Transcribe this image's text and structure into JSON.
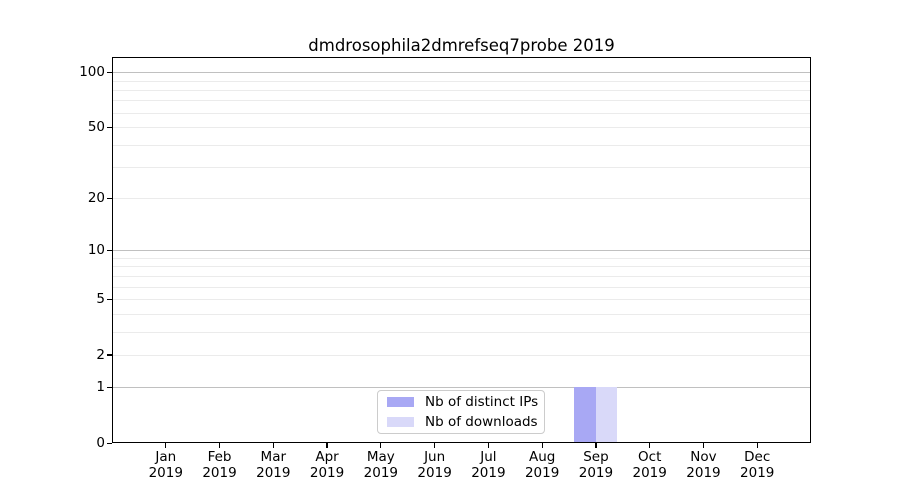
{
  "chart_data": {
    "type": "bar",
    "title": "dmdrosophila2dmrefseq7probe 2019",
    "x_tick_months": [
      "Jan",
      "Feb",
      "Mar",
      "Apr",
      "May",
      "Jun",
      "Jul",
      "Aug",
      "Sep",
      "Oct",
      "Nov",
      "Dec"
    ],
    "x_tick_year": "2019",
    "series": [
      {
        "name": "Nb of distinct IPs",
        "color": "#a8a8f4",
        "values": [
          0,
          0,
          0,
          0,
          0,
          0,
          0,
          0,
          1,
          0,
          0,
          0
        ]
      },
      {
        "name": "Nb of downloads",
        "color": "#d9d9f9",
        "values": [
          0,
          0,
          0,
          0,
          0,
          0,
          0,
          0,
          1,
          0,
          0,
          0
        ]
      }
    ],
    "y_scale": "log1p",
    "ylim": [
      0,
      121
    ],
    "y_ticks": [
      0,
      1,
      2,
      5,
      10,
      20,
      50,
      100
    ],
    "y_major_gridlines": [
      1,
      10,
      100
    ],
    "y_minor_gridlines": [
      2,
      3,
      4,
      5,
      6,
      7,
      8,
      9,
      20,
      30,
      40,
      50,
      60,
      70,
      80,
      90
    ],
    "grid": "horizontal",
    "legend_position": "lower center",
    "colors": {
      "major_grid": "#c0c0c0",
      "minor_grid": "#ebebeb",
      "spine": "#000000",
      "background": "#ffffff"
    }
  }
}
